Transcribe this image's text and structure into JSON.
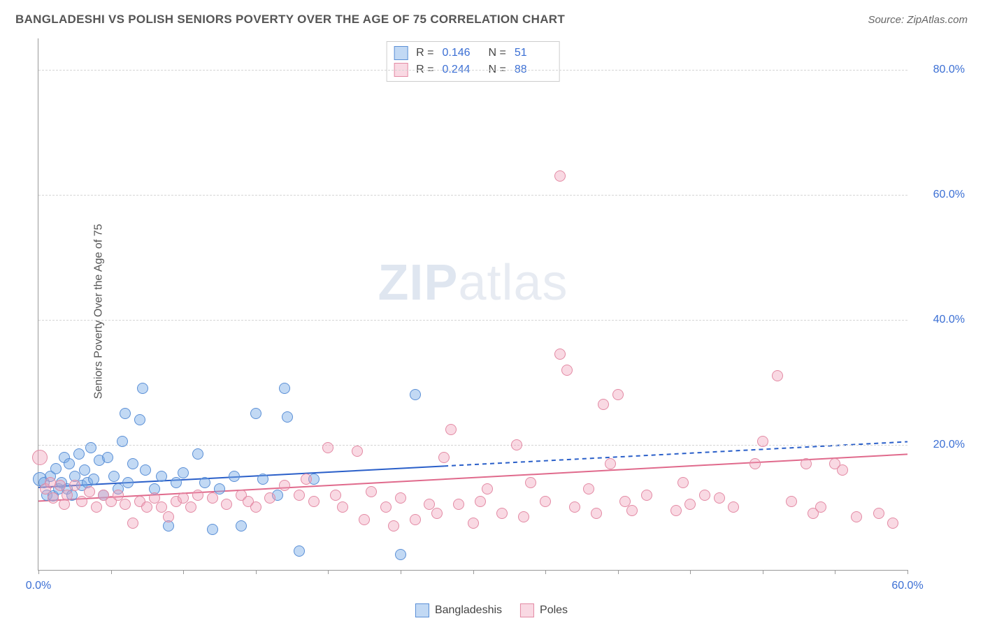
{
  "header": {
    "title": "BANGLADESHI VS POLISH SENIORS POVERTY OVER THE AGE OF 75 CORRELATION CHART",
    "source": "Source: ZipAtlas.com"
  },
  "chart": {
    "type": "scatter",
    "ylabel": "Seniors Poverty Over the Age of 75",
    "watermark_prefix": "ZIP",
    "watermark_suffix": "atlas",
    "xlim": [
      0,
      60
    ],
    "ylim": [
      0,
      85
    ],
    "background_color": "#ffffff",
    "grid_color": "#d5d5d5",
    "axis_color": "#999999",
    "yticks": [
      {
        "value": 20,
        "label": "20.0%"
      },
      {
        "value": 40,
        "label": "40.0%"
      },
      {
        "value": 60,
        "label": "60.0%"
      },
      {
        "value": 80,
        "label": "80.0%"
      }
    ],
    "xtick_positions": [
      0,
      5,
      10,
      15,
      20,
      25,
      30,
      35,
      40,
      45,
      50,
      55,
      60
    ],
    "xtick_labels": [
      {
        "value": 0,
        "label": "0.0%"
      },
      {
        "value": 60,
        "label": "60.0%"
      }
    ],
    "ytick_label_color": "#3b6fd4",
    "xtick_label_color": "#3b6fd4",
    "label_fontsize": 16,
    "title_fontsize": 17,
    "series": [
      {
        "id": "bangladeshis",
        "name": "Bangladeshis",
        "marker_fill": "rgba(120,170,230,0.45)",
        "marker_stroke": "#5a8fd6",
        "marker_size": 16,
        "R": "0.146",
        "N": "51",
        "trendline": {
          "x1": 0,
          "y1": 13.2,
          "x2": 60,
          "y2": 20.5,
          "solid_until_x": 28,
          "color": "#2a5fc9",
          "width": 2
        },
        "points": [
          {
            "x": 0.1,
            "y": 14.5,
            "r": 20
          },
          {
            "x": 0.4,
            "y": 14.0
          },
          {
            "x": 0.6,
            "y": 12.0
          },
          {
            "x": 0.8,
            "y": 15.0
          },
          {
            "x": 1.0,
            "y": 11.8
          },
          {
            "x": 1.2,
            "y": 16.2
          },
          {
            "x": 1.4,
            "y": 13.0
          },
          {
            "x": 1.6,
            "y": 14.0
          },
          {
            "x": 1.8,
            "y": 18.0
          },
          {
            "x": 2.0,
            "y": 13.0
          },
          {
            "x": 2.1,
            "y": 17.0
          },
          {
            "x": 2.3,
            "y": 12.0
          },
          {
            "x": 2.5,
            "y": 15.0
          },
          {
            "x": 2.8,
            "y": 18.5
          },
          {
            "x": 3.0,
            "y": 13.5
          },
          {
            "x": 3.2,
            "y": 16.0
          },
          {
            "x": 3.4,
            "y": 14.0
          },
          {
            "x": 3.6,
            "y": 19.5
          },
          {
            "x": 3.8,
            "y": 14.5
          },
          {
            "x": 4.2,
            "y": 17.5
          },
          {
            "x": 4.5,
            "y": 12.0
          },
          {
            "x": 4.8,
            "y": 18.0
          },
          {
            "x": 5.2,
            "y": 15.0
          },
          {
            "x": 5.5,
            "y": 13.0
          },
          {
            "x": 5.8,
            "y": 20.5
          },
          {
            "x": 6.0,
            "y": 25.0
          },
          {
            "x": 6.2,
            "y": 14.0
          },
          {
            "x": 6.5,
            "y": 17.0
          },
          {
            "x": 7.0,
            "y": 24.0
          },
          {
            "x": 7.2,
            "y": 29.0
          },
          {
            "x": 7.4,
            "y": 16.0
          },
          {
            "x": 8.0,
            "y": 13.0
          },
          {
            "x": 8.5,
            "y": 15.0
          },
          {
            "x": 9.0,
            "y": 7.0
          },
          {
            "x": 9.5,
            "y": 14.0
          },
          {
            "x": 10.0,
            "y": 15.5
          },
          {
            "x": 11.0,
            "y": 18.5
          },
          {
            "x": 11.5,
            "y": 14.0
          },
          {
            "x": 12.0,
            "y": 6.5
          },
          {
            "x": 12.5,
            "y": 13.0
          },
          {
            "x": 13.5,
            "y": 15.0
          },
          {
            "x": 14.0,
            "y": 7.0
          },
          {
            "x": 15.0,
            "y": 25.0
          },
          {
            "x": 15.5,
            "y": 14.5
          },
          {
            "x": 16.5,
            "y": 12.0
          },
          {
            "x": 17.0,
            "y": 29.0
          },
          {
            "x": 17.2,
            "y": 24.5
          },
          {
            "x": 18.0,
            "y": 3.0
          },
          {
            "x": 19.0,
            "y": 14.5
          },
          {
            "x": 26.0,
            "y": 28.0
          },
          {
            "x": 25.0,
            "y": 2.5
          }
        ]
      },
      {
        "id": "poles",
        "name": "Poles",
        "marker_fill": "rgba(240,160,185,0.40)",
        "marker_stroke": "#e38aa4",
        "marker_size": 16,
        "R": "0.244",
        "N": "88",
        "trendline": {
          "x1": 0,
          "y1": 11.0,
          "x2": 60,
          "y2": 18.5,
          "solid_until_x": 60,
          "color": "#e06a8c",
          "width": 2
        },
        "points": [
          {
            "x": 0.1,
            "y": 18.0,
            "r": 22
          },
          {
            "x": 0.5,
            "y": 13.0
          },
          {
            "x": 0.8,
            "y": 14.0
          },
          {
            "x": 1.0,
            "y": 11.5
          },
          {
            "x": 1.5,
            "y": 13.5
          },
          {
            "x": 1.8,
            "y": 10.5
          },
          {
            "x": 2.0,
            "y": 12.0
          },
          {
            "x": 2.5,
            "y": 13.5
          },
          {
            "x": 3.0,
            "y": 11.0
          },
          {
            "x": 3.5,
            "y": 12.5
          },
          {
            "x": 4.0,
            "y": 10.0
          },
          {
            "x": 4.5,
            "y": 12.0
          },
          {
            "x": 5.0,
            "y": 11.0
          },
          {
            "x": 5.5,
            "y": 12.0
          },
          {
            "x": 6.0,
            "y": 10.5
          },
          {
            "x": 6.5,
            "y": 7.5
          },
          {
            "x": 7.0,
            "y": 11.0
          },
          {
            "x": 7.5,
            "y": 10.0
          },
          {
            "x": 8.0,
            "y": 11.5
          },
          {
            "x": 8.5,
            "y": 10.0
          },
          {
            "x": 9.0,
            "y": 8.5
          },
          {
            "x": 9.5,
            "y": 11.0
          },
          {
            "x": 10.0,
            "y": 11.5
          },
          {
            "x": 10.5,
            "y": 10.0
          },
          {
            "x": 11.0,
            "y": 12.0
          },
          {
            "x": 12.0,
            "y": 11.5
          },
          {
            "x": 13.0,
            "y": 10.5
          },
          {
            "x": 14.0,
            "y": 12.0
          },
          {
            "x": 14.5,
            "y": 11.0
          },
          {
            "x": 15.0,
            "y": 10.0
          },
          {
            "x": 16.0,
            "y": 11.5
          },
          {
            "x": 17.0,
            "y": 13.5
          },
          {
            "x": 18.0,
            "y": 12.0
          },
          {
            "x": 18.5,
            "y": 14.5
          },
          {
            "x": 19.0,
            "y": 11.0
          },
          {
            "x": 20.0,
            "y": 19.5
          },
          {
            "x": 20.5,
            "y": 12.0
          },
          {
            "x": 21.0,
            "y": 10.0
          },
          {
            "x": 22.0,
            "y": 19.0
          },
          {
            "x": 22.5,
            "y": 8.0
          },
          {
            "x": 23.0,
            "y": 12.5
          },
          {
            "x": 24.0,
            "y": 10.0
          },
          {
            "x": 24.5,
            "y": 7.0
          },
          {
            "x": 25.0,
            "y": 11.5
          },
          {
            "x": 26.0,
            "y": 8.0
          },
          {
            "x": 27.0,
            "y": 10.5
          },
          {
            "x": 27.5,
            "y": 9.0
          },
          {
            "x": 28.0,
            "y": 18.0
          },
          {
            "x": 28.5,
            "y": 22.5
          },
          {
            "x": 29.0,
            "y": 10.5
          },
          {
            "x": 30.0,
            "y": 7.5
          },
          {
            "x": 30.5,
            "y": 11.0
          },
          {
            "x": 31.0,
            "y": 13.0
          },
          {
            "x": 32.0,
            "y": 9.0
          },
          {
            "x": 33.0,
            "y": 20.0
          },
          {
            "x": 33.5,
            "y": 8.5
          },
          {
            "x": 34.0,
            "y": 14.0
          },
          {
            "x": 35.0,
            "y": 11.0
          },
          {
            "x": 36.0,
            "y": 34.5
          },
          {
            "x": 36.0,
            "y": 63.0
          },
          {
            "x": 36.5,
            "y": 32.0
          },
          {
            "x": 37.0,
            "y": 10.0
          },
          {
            "x": 38.0,
            "y": 13.0
          },
          {
            "x": 38.5,
            "y": 9.0
          },
          {
            "x": 39.0,
            "y": 26.5
          },
          {
            "x": 39.5,
            "y": 17.0
          },
          {
            "x": 40.0,
            "y": 28.0
          },
          {
            "x": 40.5,
            "y": 11.0
          },
          {
            "x": 41.0,
            "y": 9.5
          },
          {
            "x": 42.0,
            "y": 12.0
          },
          {
            "x": 44.0,
            "y": 9.5
          },
          {
            "x": 44.5,
            "y": 14.0
          },
          {
            "x": 45.0,
            "y": 10.5
          },
          {
            "x": 46.0,
            "y": 12.0
          },
          {
            "x": 47.0,
            "y": 11.5
          },
          {
            "x": 48.0,
            "y": 10.0
          },
          {
            "x": 49.5,
            "y": 17.0
          },
          {
            "x": 50.0,
            "y": 20.5
          },
          {
            "x": 51.0,
            "y": 31.0
          },
          {
            "x": 52.0,
            "y": 11.0
          },
          {
            "x": 53.0,
            "y": 17.0
          },
          {
            "x": 53.5,
            "y": 9.0
          },
          {
            "x": 54.0,
            "y": 10.0
          },
          {
            "x": 55.0,
            "y": 17.0
          },
          {
            "x": 55.5,
            "y": 16.0
          },
          {
            "x": 56.5,
            "y": 8.5
          },
          {
            "x": 58.0,
            "y": 9.0
          },
          {
            "x": 59.0,
            "y": 7.5
          }
        ]
      }
    ],
    "legend_bottom_labels": {
      "R_label": "R =",
      "N_label": "N ="
    }
  }
}
